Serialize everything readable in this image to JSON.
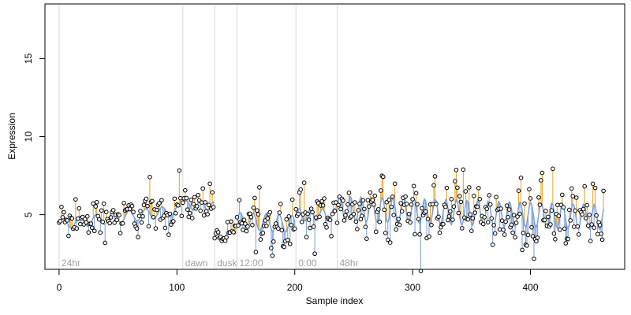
{
  "chart_data": {
    "type": "scatter",
    "title": "",
    "xlabel": "Sample index",
    "ylabel": "Expression",
    "xlim": [
      -12,
      480
    ],
    "ylim": [
      1.5,
      18.5
    ],
    "x_ticks": [
      0,
      100,
      200,
      300,
      400
    ],
    "y_ticks": [
      5,
      10,
      15
    ],
    "grid": false,
    "colors": {
      "points": "#000000",
      "fit_line": "#7b9fd4",
      "residual_above": "#e8a020",
      "residual_below": "#7b9fd4",
      "marker_lines": "#d9d9d9",
      "marker_labels": "#a0a0a0"
    },
    "markers": [
      {
        "x": 0,
        "label": "24hr"
      },
      {
        "x": 105,
        "label": "dawn"
      },
      {
        "x": 132,
        "label": "dusk"
      },
      {
        "x": 151,
        "label": "12:00"
      },
      {
        "x": 201,
        "label": "0:00"
      },
      {
        "x": 236,
        "label": "48hr"
      }
    ],
    "segments": [
      {
        "start": 0,
        "end": 104,
        "base": 4.4,
        "slope": 0.0085,
        "amp": 0.35,
        "period": 14,
        "noise": 0.65
      },
      {
        "start": 105,
        "end": 131,
        "base": 5.6,
        "slope": 0.0,
        "amp": 0.3,
        "period": 12,
        "noise": 0.55
      },
      {
        "start": 132,
        "end": 150,
        "base": 3.5,
        "slope": 0.025,
        "amp": 0.2,
        "period": 10,
        "noise": 0.45
      },
      {
        "start": 151,
        "end": 200,
        "base": 4.6,
        "slope": -0.004,
        "amp": 0.55,
        "period": 11,
        "noise": 0.9
      },
      {
        "start": 201,
        "end": 235,
        "base": 5.0,
        "slope": 0.0,
        "amp": 0.4,
        "period": 10,
        "noise": 0.75
      },
      {
        "start": 236,
        "end": 462,
        "base": 5.4,
        "slope": -0.0025,
        "amp": 0.8,
        "period": 9,
        "noise": 1.0
      }
    ]
  }
}
